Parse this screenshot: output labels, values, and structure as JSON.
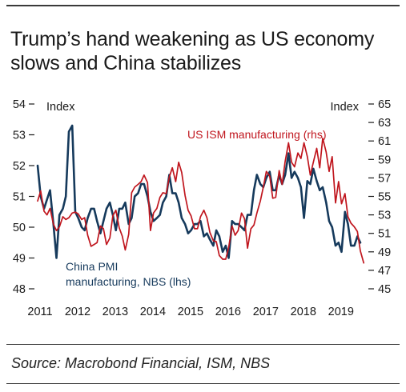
{
  "title": "Trump’s hand weakening as US economy slows and China stabilizes",
  "source": "Source: Macrobond Financial, ISM, NBS",
  "colors": {
    "china": "#163a5c",
    "us": "#c0161e",
    "text": "#1a1a1a"
  },
  "chart_data": {
    "type": "line",
    "left_axis_label": "Index",
    "right_axis_label": "Index",
    "ylim_left": [
      48,
      54
    ],
    "ylim_right": [
      45,
      65
    ],
    "yticks_left": [
      48,
      49,
      50,
      51,
      52,
      53,
      54
    ],
    "yticks_right": [
      45,
      47,
      49,
      51,
      53,
      55,
      57,
      59,
      61,
      63,
      65
    ],
    "x_range": [
      2011.0,
      2019.75
    ],
    "xtick_labels": [
      "2011",
      "2012",
      "2013",
      "2014",
      "2015",
      "2016",
      "2017",
      "2018",
      "2019"
    ],
    "grid": false,
    "series": [
      {
        "name": "China PMI manufacturing, NBS (lhs)",
        "axis": "left",
        "color": "#163a5c",
        "x": [
          2011.0,
          2011.08,
          2011.17,
          2011.25,
          2011.33,
          2011.42,
          2011.5,
          2011.58,
          2011.67,
          2011.75,
          2011.83,
          2011.92,
          2012.0,
          2012.08,
          2012.17,
          2012.25,
          2012.33,
          2012.42,
          2012.5,
          2012.58,
          2012.67,
          2012.75,
          2012.83,
          2012.92,
          2013.0,
          2013.08,
          2013.17,
          2013.25,
          2013.33,
          2013.42,
          2013.5,
          2013.58,
          2013.67,
          2013.75,
          2013.83,
          2013.92,
          2014.0,
          2014.08,
          2014.17,
          2014.25,
          2014.33,
          2014.42,
          2014.5,
          2014.58,
          2014.67,
          2014.75,
          2014.83,
          2014.92,
          2015.0,
          2015.08,
          2015.17,
          2015.25,
          2015.33,
          2015.42,
          2015.5,
          2015.58,
          2015.67,
          2015.75,
          2015.83,
          2015.92,
          2016.0,
          2016.08,
          2016.17,
          2016.25,
          2016.33,
          2016.42,
          2016.5,
          2016.58,
          2016.67,
          2016.75,
          2016.83,
          2016.92,
          2017.0,
          2017.08,
          2017.17,
          2017.25,
          2017.33,
          2017.42,
          2017.5,
          2017.58,
          2017.67,
          2017.75,
          2017.83,
          2017.92,
          2018.0,
          2018.08,
          2018.17,
          2018.25,
          2018.33,
          2018.42,
          2018.5,
          2018.58,
          2018.67,
          2018.75,
          2018.83,
          2018.92,
          2019.0,
          2019.08,
          2019.17,
          2019.25,
          2019.33,
          2019.42,
          2019.5,
          2019.58
        ],
        "values": [
          52.0,
          51.0,
          50.6,
          50.9,
          51.2,
          50.1,
          49.0,
          50.4,
          50.6,
          51.0,
          53.1,
          53.3,
          50.5,
          50.3,
          50.0,
          49.9,
          50.3,
          50.6,
          50.6,
          50.2,
          49.8,
          50.2,
          50.6,
          50.8,
          50.4,
          49.9,
          50.6,
          50.6,
          50.8,
          50.1,
          50.3,
          51.0,
          51.1,
          51.4,
          51.4,
          51.0,
          50.5,
          50.2,
          50.3,
          50.4,
          50.8,
          51.0,
          51.7,
          51.1,
          51.1,
          50.8,
          50.3,
          50.1,
          49.8,
          49.9,
          50.1,
          50.1,
          50.2,
          49.7,
          49.8,
          49.6,
          49.4,
          49.9,
          49.7,
          49.2,
          49.4,
          49.0,
          50.2,
          50.1,
          50.1,
          50.0,
          49.9,
          50.4,
          50.4,
          51.2,
          51.7,
          51.4,
          51.3,
          51.6,
          51.8,
          51.2,
          51.2,
          51.7,
          51.4,
          51.7,
          52.4,
          51.6,
          51.8,
          51.6,
          51.3,
          50.3,
          51.5,
          51.4,
          51.9,
          51.5,
          51.2,
          51.3,
          50.8,
          50.2,
          50.0,
          49.4,
          49.5,
          49.2,
          50.5,
          50.1,
          49.4,
          49.4,
          49.7,
          49.5
        ],
        "label": "China PMI manufacturing, NBS (lhs)",
        "label_lines": [
          "China PMI",
          "manufacturing, NBS (lhs)"
        ]
      },
      {
        "name": "US ISM manufacturing (rhs)",
        "axis": "right",
        "color": "#c0161e",
        "x": [
          2011.0,
          2011.08,
          2011.17,
          2011.25,
          2011.33,
          2011.42,
          2011.5,
          2011.58,
          2011.67,
          2011.75,
          2011.83,
          2011.92,
          2012.0,
          2012.08,
          2012.17,
          2012.25,
          2012.33,
          2012.42,
          2012.5,
          2012.58,
          2012.67,
          2012.75,
          2012.83,
          2012.92,
          2013.0,
          2013.08,
          2013.17,
          2013.25,
          2013.33,
          2013.42,
          2013.5,
          2013.58,
          2013.67,
          2013.75,
          2013.83,
          2013.92,
          2014.0,
          2014.08,
          2014.17,
          2014.25,
          2014.33,
          2014.42,
          2014.5,
          2014.58,
          2014.67,
          2014.75,
          2014.83,
          2014.92,
          2015.0,
          2015.08,
          2015.17,
          2015.25,
          2015.33,
          2015.42,
          2015.5,
          2015.58,
          2015.67,
          2015.75,
          2015.83,
          2015.92,
          2016.0,
          2016.08,
          2016.17,
          2016.25,
          2016.33,
          2016.42,
          2016.5,
          2016.58,
          2016.67,
          2016.75,
          2016.83,
          2016.92,
          2017.0,
          2017.08,
          2017.17,
          2017.25,
          2017.33,
          2017.42,
          2017.5,
          2017.58,
          2017.67,
          2017.75,
          2017.83,
          2017.92,
          2018.0,
          2018.08,
          2018.17,
          2018.25,
          2018.33,
          2018.42,
          2018.5,
          2018.58,
          2018.67,
          2018.75,
          2018.83,
          2018.92,
          2019.0,
          2019.08,
          2019.17,
          2019.25,
          2019.33,
          2019.42,
          2019.5,
          2019.58,
          2019.67
        ],
        "values": [
          54.5,
          55.6,
          53.4,
          53.0,
          53.7,
          52.0,
          51.3,
          51.7,
          52.8,
          52.5,
          52.7,
          53.2,
          53.3,
          53.1,
          52.5,
          52.7,
          50.8,
          49.6,
          49.8,
          50.0,
          51.8,
          51.5,
          49.8,
          50.5,
          52.9,
          53.5,
          51.6,
          50.7,
          49.2,
          50.9,
          55.4,
          56.0,
          56.3,
          56.6,
          57.3,
          56.5,
          51.3,
          53.2,
          53.7,
          54.9,
          55.4,
          55.3,
          57.1,
          58.1,
          56.6,
          58.7,
          57.6,
          55.1,
          53.5,
          52.9,
          51.5,
          51.5,
          52.8,
          53.5,
          52.7,
          51.1,
          50.2,
          50.1,
          48.6,
          48.2,
          48.2,
          49.5,
          51.8,
          50.8,
          51.3,
          53.2,
          52.6,
          49.4,
          51.5,
          51.9,
          53.2,
          54.5,
          56.0,
          57.7,
          57.2,
          54.8,
          54.9,
          57.8,
          56.3,
          58.8,
          60.8,
          58.7,
          58.2,
          59.7,
          59.1,
          60.8,
          59.3,
          57.3,
          58.7,
          60.2,
          58.1,
          61.3,
          59.8,
          57.7,
          59.3,
          54.3,
          56.6,
          54.2,
          55.3,
          52.8,
          52.1,
          51.7,
          51.2,
          49.1,
          47.8
        ],
        "label": "US ISM manufacturing (rhs)"
      }
    ]
  }
}
